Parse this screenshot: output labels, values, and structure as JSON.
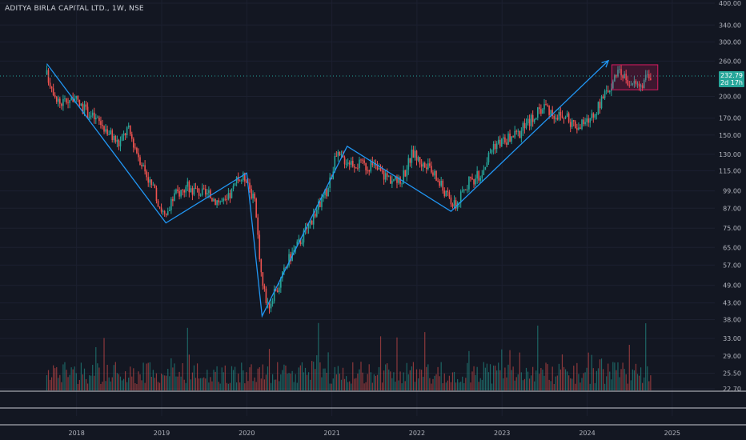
{
  "header": {
    "title": "ADITYA BIRLA CAPITAL LTD., 1W, NSE"
  },
  "price_axis": {
    "labels": [
      "400.00",
      "340.00",
      "300.00",
      "260.00",
      "200.00",
      "170.00",
      "150.00",
      "130.00",
      "115.00",
      "99.00",
      "87.00",
      "75.00",
      "65.00",
      "57.00",
      "49.00",
      "43.00",
      "38.00",
      "33.00",
      "29.00",
      "25.50",
      "22.70"
    ],
    "current_price": "232.79",
    "countdown": "2d 17h"
  },
  "time_axis": {
    "labels": [
      "2018",
      "2019",
      "2020",
      "2021",
      "2022",
      "2023",
      "2024",
      "2025"
    ]
  },
  "colors": {
    "background": "#131722",
    "up": "#26a69a",
    "down": "#ef5350",
    "drawing": "#2196f3",
    "box": "#d81b60",
    "text": "#b2b5be"
  },
  "chart_data": {
    "type": "candlestick",
    "symbol": "ADITYA BIRLA CAPITAL LTD.",
    "interval": "1W",
    "exchange": "NSE",
    "scale": "log",
    "ylim": [
      22.7,
      400
    ],
    "xlim": [
      2017.1,
      2025.5
    ],
    "y_ticks": [
      400,
      340,
      300,
      260,
      200,
      170,
      150,
      130,
      115,
      99,
      87,
      75,
      65,
      57,
      49,
      43,
      38,
      33,
      29,
      25.5,
      22.7
    ],
    "x_ticks": [
      2018,
      2019,
      2020,
      2021,
      2022,
      2023,
      2024,
      2025
    ],
    "last_price": 232.79,
    "price_path": [
      [
        2017.65,
        235
      ],
      [
        2017.8,
        190
      ],
      [
        2017.95,
        198
      ],
      [
        2018.1,
        180
      ],
      [
        2018.3,
        162
      ],
      [
        2018.5,
        140
      ],
      [
        2018.6,
        158
      ],
      [
        2018.75,
        125
      ],
      [
        2018.9,
        100
      ],
      [
        2019.05,
        80
      ],
      [
        2019.15,
        96
      ],
      [
        2019.3,
        102
      ],
      [
        2019.45,
        98
      ],
      [
        2019.6,
        94
      ],
      [
        2019.75,
        90
      ],
      [
        2019.9,
        108
      ],
      [
        2020.0,
        110
      ],
      [
        2020.1,
        88
      ],
      [
        2020.18,
        50
      ],
      [
        2020.25,
        42
      ],
      [
        2020.35,
        47
      ],
      [
        2020.5,
        60
      ],
      [
        2020.65,
        70
      ],
      [
        2020.8,
        84
      ],
      [
        2020.95,
        100
      ],
      [
        2021.05,
        128
      ],
      [
        2021.2,
        124
      ],
      [
        2021.35,
        120
      ],
      [
        2021.5,
        118
      ],
      [
        2021.65,
        110
      ],
      [
        2021.8,
        105
      ],
      [
        2021.95,
        132
      ],
      [
        2022.05,
        122
      ],
      [
        2022.2,
        112
      ],
      [
        2022.35,
        96
      ],
      [
        2022.45,
        88
      ],
      [
        2022.6,
        105
      ],
      [
        2022.75,
        112
      ],
      [
        2022.9,
        140
      ],
      [
        2023.05,
        145
      ],
      [
        2023.2,
        152
      ],
      [
        2023.35,
        170
      ],
      [
        2023.5,
        188
      ],
      [
        2023.6,
        176
      ],
      [
        2023.75,
        170
      ],
      [
        2023.9,
        160
      ],
      [
        2024.0,
        166
      ],
      [
        2024.1,
        178
      ],
      [
        2024.2,
        200
      ],
      [
        2024.3,
        226
      ],
      [
        2024.4,
        238
      ],
      [
        2024.5,
        222
      ],
      [
        2024.6,
        218
      ],
      [
        2024.68,
        224
      ],
      [
        2024.75,
        232.79
      ]
    ],
    "drawings": {
      "zigzag": [
        [
          2017.65,
          255
        ],
        [
          2019.05,
          78
        ],
        [
          2020.0,
          113
        ],
        [
          2020.18,
          39
        ],
        [
          2021.18,
          138
        ],
        [
          2022.4,
          85
        ],
        [
          2024.25,
          261
        ]
      ],
      "box": {
        "x": [
          2024.29,
          2024.83
        ],
        "y": [
          210,
          253
        ]
      },
      "current_price_line": 232.79
    }
  }
}
